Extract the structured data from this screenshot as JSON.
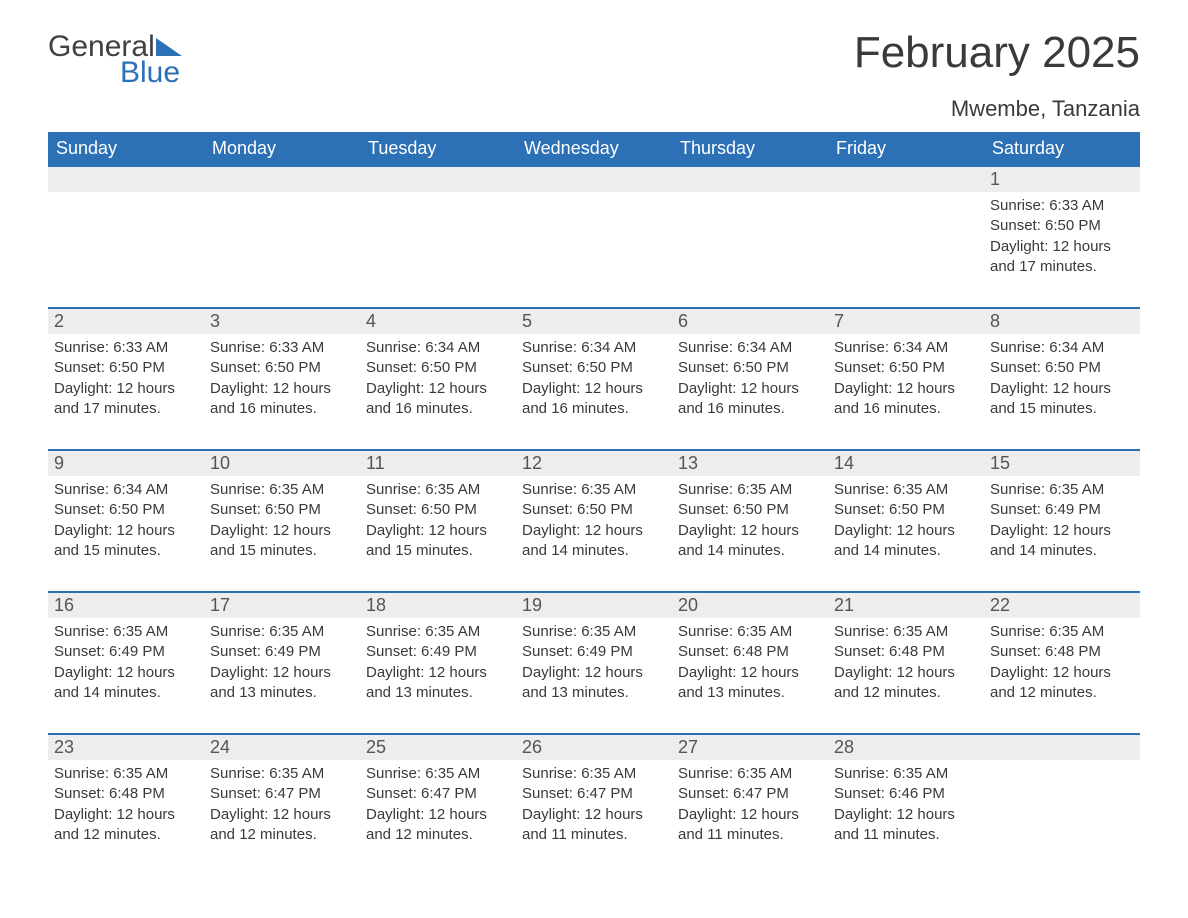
{
  "brand": {
    "name_part1": "General",
    "name_part2": "Blue",
    "color_text": "#404040",
    "color_accent": "#2c70b6"
  },
  "title": "February 2025",
  "location": "Mwembe, Tanzania",
  "colors": {
    "header_bg": "#2c70b6",
    "header_text": "#ffffff",
    "daybar_bg": "#ededed",
    "daybar_border": "#2c70b6",
    "body_text": "#3a3a3a",
    "page_bg": "#ffffff"
  },
  "typography": {
    "title_fontsize": 44,
    "location_fontsize": 22,
    "weekday_fontsize": 18,
    "daynum_fontsize": 18,
    "body_fontsize": 15
  },
  "weekdays": [
    "Sunday",
    "Monday",
    "Tuesday",
    "Wednesday",
    "Thursday",
    "Friday",
    "Saturday"
  ],
  "layout": {
    "type": "calendar-month",
    "columns": 7,
    "rows": 5,
    "first_day_column_index": 6,
    "days_in_month": 28
  },
  "days": {
    "1": {
      "sunrise": "6:33 AM",
      "sunset": "6:50 PM",
      "daylight": "12 hours and 17 minutes."
    },
    "2": {
      "sunrise": "6:33 AM",
      "sunset": "6:50 PM",
      "daylight": "12 hours and 17 minutes."
    },
    "3": {
      "sunrise": "6:33 AM",
      "sunset": "6:50 PM",
      "daylight": "12 hours and 16 minutes."
    },
    "4": {
      "sunrise": "6:34 AM",
      "sunset": "6:50 PM",
      "daylight": "12 hours and 16 minutes."
    },
    "5": {
      "sunrise": "6:34 AM",
      "sunset": "6:50 PM",
      "daylight": "12 hours and 16 minutes."
    },
    "6": {
      "sunrise": "6:34 AM",
      "sunset": "6:50 PM",
      "daylight": "12 hours and 16 minutes."
    },
    "7": {
      "sunrise": "6:34 AM",
      "sunset": "6:50 PM",
      "daylight": "12 hours and 16 minutes."
    },
    "8": {
      "sunrise": "6:34 AM",
      "sunset": "6:50 PM",
      "daylight": "12 hours and 15 minutes."
    },
    "9": {
      "sunrise": "6:34 AM",
      "sunset": "6:50 PM",
      "daylight": "12 hours and 15 minutes."
    },
    "10": {
      "sunrise": "6:35 AM",
      "sunset": "6:50 PM",
      "daylight": "12 hours and 15 minutes."
    },
    "11": {
      "sunrise": "6:35 AM",
      "sunset": "6:50 PM",
      "daylight": "12 hours and 15 minutes."
    },
    "12": {
      "sunrise": "6:35 AM",
      "sunset": "6:50 PM",
      "daylight": "12 hours and 14 minutes."
    },
    "13": {
      "sunrise": "6:35 AM",
      "sunset": "6:50 PM",
      "daylight": "12 hours and 14 minutes."
    },
    "14": {
      "sunrise": "6:35 AM",
      "sunset": "6:50 PM",
      "daylight": "12 hours and 14 minutes."
    },
    "15": {
      "sunrise": "6:35 AM",
      "sunset": "6:49 PM",
      "daylight": "12 hours and 14 minutes."
    },
    "16": {
      "sunrise": "6:35 AM",
      "sunset": "6:49 PM",
      "daylight": "12 hours and 14 minutes."
    },
    "17": {
      "sunrise": "6:35 AM",
      "sunset": "6:49 PM",
      "daylight": "12 hours and 13 minutes."
    },
    "18": {
      "sunrise": "6:35 AM",
      "sunset": "6:49 PM",
      "daylight": "12 hours and 13 minutes."
    },
    "19": {
      "sunrise": "6:35 AM",
      "sunset": "6:49 PM",
      "daylight": "12 hours and 13 minutes."
    },
    "20": {
      "sunrise": "6:35 AM",
      "sunset": "6:48 PM",
      "daylight": "12 hours and 13 minutes."
    },
    "21": {
      "sunrise": "6:35 AM",
      "sunset": "6:48 PM",
      "daylight": "12 hours and 12 minutes."
    },
    "22": {
      "sunrise": "6:35 AM",
      "sunset": "6:48 PM",
      "daylight": "12 hours and 12 minutes."
    },
    "23": {
      "sunrise": "6:35 AM",
      "sunset": "6:48 PM",
      "daylight": "12 hours and 12 minutes."
    },
    "24": {
      "sunrise": "6:35 AM",
      "sunset": "6:47 PM",
      "daylight": "12 hours and 12 minutes."
    },
    "25": {
      "sunrise": "6:35 AM",
      "sunset": "6:47 PM",
      "daylight": "12 hours and 12 minutes."
    },
    "26": {
      "sunrise": "6:35 AM",
      "sunset": "6:47 PM",
      "daylight": "12 hours and 11 minutes."
    },
    "27": {
      "sunrise": "6:35 AM",
      "sunset": "6:47 PM",
      "daylight": "12 hours and 11 minutes."
    },
    "28": {
      "sunrise": "6:35 AM",
      "sunset": "6:46 PM",
      "daylight": "12 hours and 11 minutes."
    }
  },
  "labels": {
    "sunrise_prefix": "Sunrise: ",
    "sunset_prefix": "Sunset: ",
    "daylight_prefix": "Daylight: "
  }
}
